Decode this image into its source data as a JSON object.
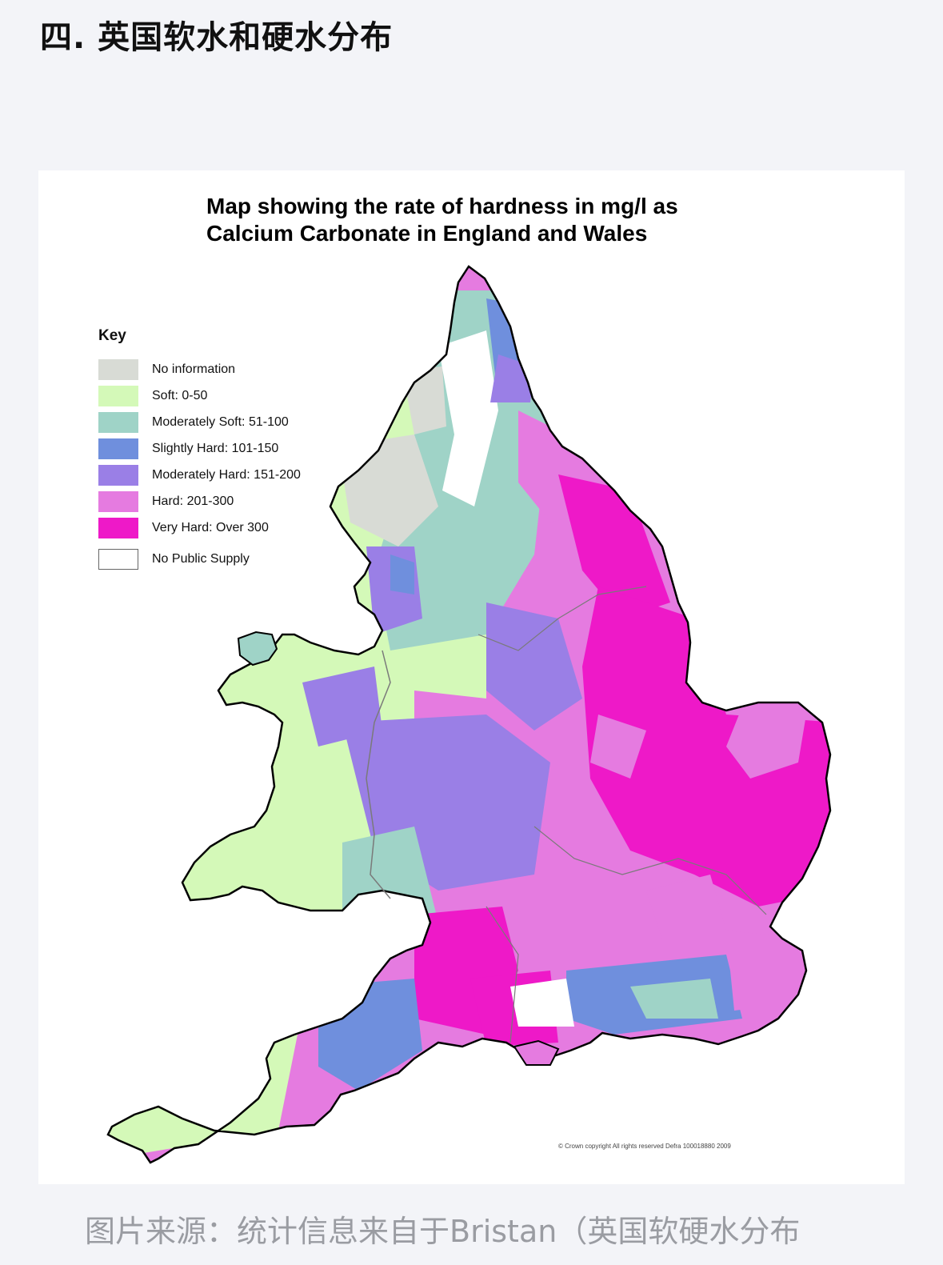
{
  "heading": "四. 英国软水和硬水分布",
  "map": {
    "title_line1": "Map showing the rate of hardness in mg/l as",
    "title_line2": "Calcium Carbonate in England and Wales",
    "legend_title": "Key",
    "legend": [
      {
        "label": "No information",
        "color": "#d8dbd5"
      },
      {
        "label": "Soft: 0-50",
        "color": "#d4f9b8"
      },
      {
        "label": "Moderately Soft: 51-100",
        "color": "#9fd3c7"
      },
      {
        "label": "Slightly Hard: 101-150",
        "color": "#6f8fdd"
      },
      {
        "label": "Moderately Hard: 151-200",
        "color": "#9a7fe6"
      },
      {
        "label": "Hard: 201-300",
        "color": "#e57be0"
      },
      {
        "label": "Very Hard: Over 300",
        "color": "#ee19c8"
      },
      {
        "label": "No Public Supply",
        "color": "#ffffff"
      }
    ],
    "copyright": "© Crown copyright  All rights reserved Defra 100018880 2009"
  },
  "caption": "图片来源：统计信息来自于Bristan（英国软硬水分布"
}
